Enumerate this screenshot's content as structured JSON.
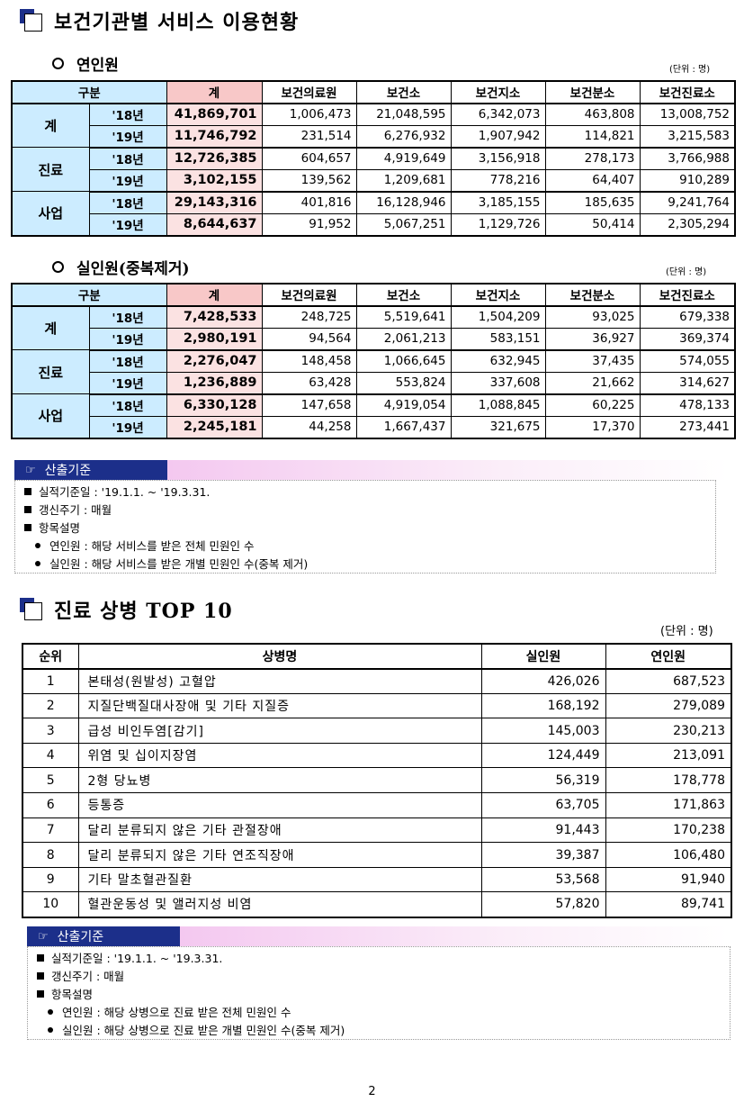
{
  "section1": {
    "title": "보건기관별 서비스 이용현황",
    "header": [
      "구분",
      "계",
      "보건의료원",
      "보건소",
      "보건지소",
      "보건분소",
      "보건진료소"
    ],
    "sub1": {
      "title": "연인원",
      "unit": "(단위 : 명)",
      "groups": [
        {
          "label": "계",
          "rows": [
            {
              "year": "'18년",
              "cells": [
                "41,869,701",
                "1,006,473",
                "21,048,595",
                "6,342,073",
                "463,808",
                "13,008,752"
              ]
            },
            {
              "year": "'19년",
              "cells": [
                "11,746,792",
                "231,514",
                "6,276,932",
                "1,907,942",
                "114,821",
                "3,215,583"
              ]
            }
          ]
        },
        {
          "label": "진료",
          "rows": [
            {
              "year": "'18년",
              "cells": [
                "12,726,385",
                "604,657",
                "4,919,649",
                "3,156,918",
                "278,173",
                "3,766,988"
              ]
            },
            {
              "year": "'19년",
              "cells": [
                "3,102,155",
                "139,562",
                "1,209,681",
                "778,216",
                "64,407",
                "910,289"
              ]
            }
          ]
        },
        {
          "label": "사업",
          "rows": [
            {
              "year": "'18년",
              "cells": [
                "29,143,316",
                "401,816",
                "16,128,946",
                "3,185,155",
                "185,635",
                "9,241,764"
              ]
            },
            {
              "year": "'19년",
              "cells": [
                "8,644,637",
                "91,952",
                "5,067,251",
                "1,129,726",
                "50,414",
                "2,305,294"
              ]
            }
          ]
        }
      ]
    },
    "sub2": {
      "title": "실인원(중복제거)",
      "unit": "(단위 : 명)",
      "groups": [
        {
          "label": "계",
          "rows": [
            {
              "year": "'18년",
              "cells": [
                "7,428,533",
                "248,725",
                "5,519,641",
                "1,504,209",
                "93,025",
                "679,338"
              ]
            },
            {
              "year": "'19년",
              "cells": [
                "2,980,191",
                "94,564",
                "2,061,213",
                "583,151",
                "36,927",
                "369,374"
              ]
            }
          ]
        },
        {
          "label": "진료",
          "rows": [
            {
              "year": "'18년",
              "cells": [
                "2,276,047",
                "148,458",
                "1,066,645",
                "632,945",
                "37,435",
                "574,055"
              ]
            },
            {
              "year": "'19년",
              "cells": [
                "1,236,889",
                "63,428",
                "553,824",
                "337,608",
                "21,662",
                "314,627"
              ]
            }
          ]
        },
        {
          "label": "사업",
          "rows": [
            {
              "year": "'18년",
              "cells": [
                "6,330,128",
                "147,658",
                "4,919,054",
                "1,088,845",
                "60,225",
                "478,133"
              ]
            },
            {
              "year": "'19년",
              "cells": [
                "2,245,181",
                "44,258",
                "1,667,437",
                "321,675",
                "17,370",
                "273,441"
              ]
            }
          ]
        }
      ]
    },
    "note": {
      "label": "산출기준",
      "basis": "실적기준일 : '19.1.1. ~ '19.3.31.",
      "cycle": "갱신주기 : 매월",
      "items_title": "항목설명",
      "item1": "연인원 : 해당 서비스를 받은 전체 민원인 수",
      "item2": "실인원 : 해당 서비스를 받은 개별 민원인 수(중복 제거)"
    }
  },
  "section2": {
    "title": "진료 상병 TOP 10",
    "unit": "(단위 : 명)",
    "header": [
      "순위",
      "상병명",
      "실인원",
      "연인원"
    ],
    "rows": [
      {
        "rank": "1",
        "name": "본태성(원발성) 고혈압",
        "real": "426,026",
        "total": "687,523"
      },
      {
        "rank": "2",
        "name": "지질단백질대사장애 및 기타 지질증",
        "real": "168,192",
        "total": "279,089"
      },
      {
        "rank": "3",
        "name": "급성 비인두염[감기]",
        "real": "145,003",
        "total": "230,213"
      },
      {
        "rank": "4",
        "name": "위염 및 십이지장염",
        "real": "124,449",
        "total": "213,091"
      },
      {
        "rank": "5",
        "name": "2형 당뇨병",
        "real": "56,319",
        "total": "178,778"
      },
      {
        "rank": "6",
        "name": "등통증",
        "real": "63,705",
        "total": "171,863"
      },
      {
        "rank": "7",
        "name": "달리 분류되지 않은 기타 관절장애",
        "real": "91,443",
        "total": "170,238"
      },
      {
        "rank": "8",
        "name": "달리 분류되지 않은 기타 연조직장애",
        "real": "39,387",
        "total": "106,480"
      },
      {
        "rank": "9",
        "name": "기타 말초혈관질환",
        "real": "53,568",
        "total": "91,940"
      },
      {
        "rank": "10",
        "name": "혈관운동성 및 앨러지성 비염",
        "real": "57,820",
        "total": "89,741"
      }
    ],
    "note": {
      "label": "산출기준",
      "basis": "실적기준일 : '19.1.1. ~ '19.3.31.",
      "cycle": "갱신주기 : 매월",
      "items_title": "항목설명",
      "item1": "연인원 : 해당 상병으로 진료 받은 전체 민원인 수",
      "item2": "실인원 : 해당 상병으로 진료 받은 개별 민원인 수(중복 제거)"
    }
  },
  "page_number": "2"
}
